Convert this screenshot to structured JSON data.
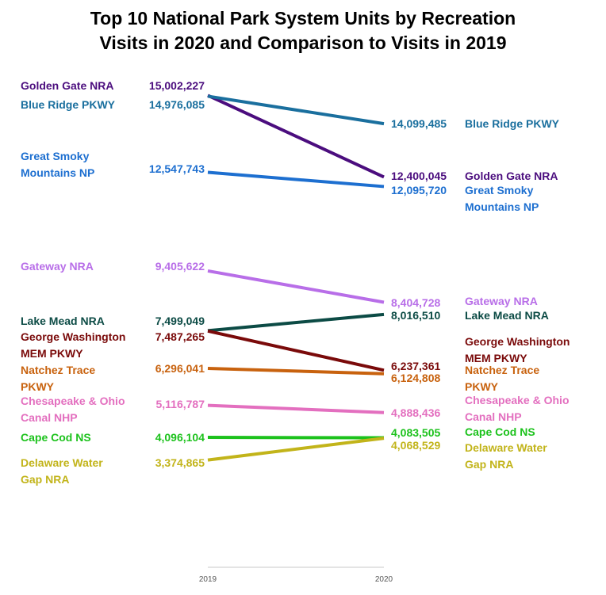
{
  "chart_data": {
    "type": "line",
    "chart_style": "slope",
    "title": "Top 10 National Park System Units by Recreation Visits in 2020 and Comparison to Visits in 2019",
    "title_lines": [
      "Top 10 National Park System Units by Recreation",
      "Visits in 2020 and Comparison to Visits in 2019"
    ],
    "categories": [
      "2019",
      "2020"
    ],
    "ylim": [
      0,
      16000000
    ],
    "series": [
      {
        "name": "Golden Gate NRA",
        "label_lines_left": [
          "Golden Gate NRA"
        ],
        "label_lines_right": [
          "Golden Gate NRA"
        ],
        "values": [
          15002227,
          12400045
        ],
        "value_labels": [
          "15,002,227",
          "12,400,045"
        ],
        "color": "#4b0d7e"
      },
      {
        "name": "Blue Ridge PKWY",
        "label_lines_left": [
          "Blue Ridge PKWY"
        ],
        "label_lines_right": [
          "Blue Ridge PKWY"
        ],
        "values": [
          14976085,
          14099485
        ],
        "value_labels": [
          "14,976,085",
          "14,099,485"
        ],
        "color": "#1a6f9e"
      },
      {
        "name": "Great Smoky Mountains NP",
        "label_lines_left": [
          "Great Smoky",
          "Mountains NP"
        ],
        "label_lines_right": [
          "Great Smoky",
          "Mountains NP"
        ],
        "values": [
          12547743,
          12095720
        ],
        "value_labels": [
          "12,547,743",
          "12,095,720"
        ],
        "color": "#1d6fd0"
      },
      {
        "name": "Gateway NRA",
        "label_lines_left": [
          "Gateway NRA"
        ],
        "label_lines_right": [
          "Gateway NRA"
        ],
        "values": [
          9405622,
          8404728
        ],
        "value_labels": [
          "9,405,622",
          "8,404,728"
        ],
        "color": "#b86ee8"
      },
      {
        "name": "Lake Mead NRA",
        "label_lines_left": [
          "Lake Mead NRA"
        ],
        "label_lines_right": [
          "Lake Mead NRA"
        ],
        "values": [
          7499049,
          8016510
        ],
        "value_labels": [
          "7,499,049",
          "8,016,510"
        ],
        "color": "#0c4b45"
      },
      {
        "name": "George Washington MEM PKWY",
        "label_lines_left": [
          "George Washington",
          "MEM PKWY"
        ],
        "label_lines_right": [
          "George Washington",
          "MEM PKWY"
        ],
        "values": [
          7487265,
          6237361
        ],
        "value_labels": [
          "7,487,265",
          "6,237,361"
        ],
        "color": "#7a0a0a"
      },
      {
        "name": "Natchez Trace PKWY",
        "label_lines_left": [
          "Natchez Trace",
          "PKWY"
        ],
        "label_lines_right": [
          "Natchez Trace",
          "PKWY"
        ],
        "values": [
          6296041,
          6124808
        ],
        "value_labels": [
          "6,296,041",
          "6,124,808"
        ],
        "color": "#c8620e"
      },
      {
        "name": "Chesapeake & Ohio Canal NHP",
        "label_lines_left": [
          "Chesapeake & Ohio",
          "Canal NHP"
        ],
        "label_lines_right": [
          "Chesapeake & Ohio",
          "Canal NHP"
        ],
        "values": [
          5116787,
          4888436
        ],
        "value_labels": [
          "5,116,787",
          "4,888,436"
        ],
        "color": "#e36fbf"
      },
      {
        "name": "Cape Cod NS",
        "label_lines_left": [
          "Cape Cod NS"
        ],
        "label_lines_right": [
          "Cape Cod NS"
        ],
        "values": [
          4096104,
          4083505
        ],
        "value_labels": [
          "4,096,104",
          "4,083,505"
        ],
        "color": "#1cc21c"
      },
      {
        "name": "Delaware Water Gap NRA",
        "label_lines_left": [
          "Delaware Water",
          "Gap NRA"
        ],
        "label_lines_right": [
          "Delaware Water",
          "Gap NRA"
        ],
        "values": [
          3374865,
          4068529
        ],
        "value_labels": [
          "3,374,865",
          "4,068,529"
        ],
        "color": "#c2b41a"
      }
    ]
  }
}
